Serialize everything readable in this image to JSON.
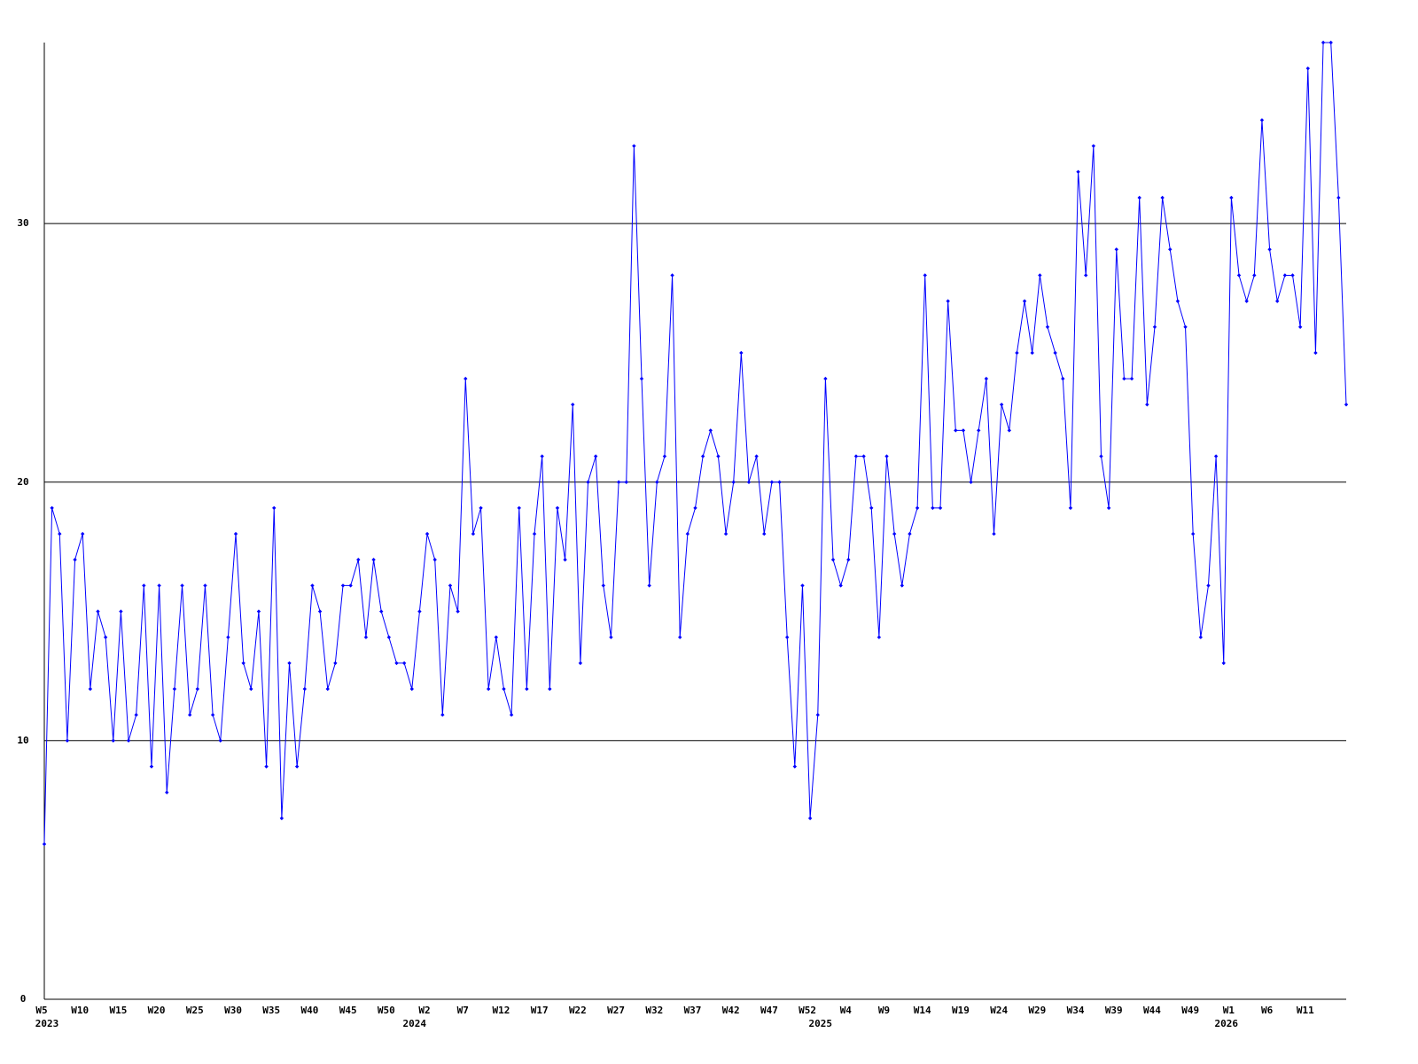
{
  "chart_data": {
    "type": "line",
    "color": "#0000ff",
    "grid": true,
    "ylim": [
      0,
      37
    ],
    "yticks": [
      0,
      10,
      20,
      30
    ],
    "categories": [
      "W5",
      null,
      null,
      null,
      null,
      "W10",
      null,
      null,
      null,
      null,
      "W15",
      null,
      null,
      null,
      null,
      "W20",
      null,
      null,
      null,
      null,
      "W25",
      null,
      null,
      null,
      null,
      "W30",
      null,
      null,
      null,
      null,
      "W35",
      null,
      null,
      null,
      null,
      "W40",
      null,
      null,
      null,
      null,
      "W45",
      null,
      null,
      null,
      null,
      "W50",
      null,
      null,
      null,
      null,
      "W2",
      null,
      null,
      null,
      null,
      "W7",
      null,
      null,
      null,
      null,
      "W12",
      null,
      null,
      null,
      null,
      "W17",
      null,
      null,
      null,
      null,
      "W22",
      null,
      null,
      null,
      null,
      "W27",
      null,
      null,
      null,
      null,
      "W32",
      null,
      null,
      null,
      null,
      "W37",
      null,
      null,
      null,
      null,
      "W42",
      null,
      null,
      null,
      null,
      "W47",
      null,
      null,
      null,
      null,
      "W52",
      null,
      null,
      null,
      null,
      "W4",
      null,
      null,
      null,
      null,
      "W9",
      null,
      null,
      null,
      null,
      "W14",
      null,
      null,
      null,
      null,
      "W19",
      null,
      null,
      null,
      null,
      "W24",
      null,
      null,
      null,
      null,
      "W29",
      null,
      null,
      null,
      null,
      "W34",
      null,
      null,
      null,
      null,
      "W39",
      null,
      null,
      null,
      null,
      "W44",
      null,
      null,
      null,
      null,
      "W49",
      null,
      null,
      null,
      null,
      "W1",
      null,
      null,
      null,
      null,
      "W6",
      null,
      null,
      null,
      null,
      "W11",
      null,
      null,
      null,
      null,
      null
    ],
    "years": [
      "2023",
      null,
      null,
      null,
      null,
      null,
      null,
      null,
      null,
      null,
      null,
      null,
      null,
      null,
      null,
      null,
      null,
      null,
      null,
      null,
      null,
      null,
      null,
      null,
      null,
      null,
      null,
      null,
      null,
      null,
      null,
      null,
      null,
      null,
      null,
      null,
      null,
      null,
      null,
      null,
      null,
      null,
      null,
      null,
      null,
      null,
      null,
      null,
      "2024",
      null,
      null,
      null,
      null,
      null,
      null,
      null,
      null,
      null,
      null,
      null,
      null,
      null,
      null,
      null,
      null,
      null,
      null,
      null,
      null,
      null,
      null,
      null,
      null,
      null,
      null,
      null,
      null,
      null,
      null,
      null,
      null,
      null,
      null,
      null,
      null,
      null,
      null,
      null,
      null,
      null,
      null,
      null,
      null,
      null,
      null,
      null,
      null,
      null,
      null,
      null,
      null,
      "2025",
      null,
      null,
      null,
      null,
      null,
      null,
      null,
      null,
      null,
      null,
      null,
      null,
      null,
      null,
      null,
      null,
      null,
      null,
      null,
      null,
      null,
      null,
      null,
      null,
      null,
      null,
      null,
      null,
      null,
      null,
      null,
      null,
      null,
      null,
      null,
      null,
      null,
      null,
      null,
      null,
      null,
      null,
      null,
      null,
      null,
      null,
      null,
      null,
      null,
      null,
      null,
      null,
      "2026",
      null,
      null,
      null,
      null,
      null,
      null,
      null,
      null,
      null,
      null,
      null,
      null,
      null,
      null,
      null,
      null
    ],
    "values": [
      6,
      19,
      18,
      10,
      17,
      18,
      12,
      15,
      14,
      10,
      15,
      10,
      11,
      16,
      9,
      16,
      8,
      12,
      16,
      11,
      12,
      16,
      11,
      10,
      14,
      18,
      13,
      12,
      15,
      9,
      19,
      7,
      13,
      9,
      12,
      16,
      15,
      12,
      13,
      16,
      16,
      17,
      14,
      17,
      15,
      14,
      13,
      13,
      12,
      15,
      18,
      17,
      11,
      16,
      15,
      24,
      18,
      19,
      12,
      14,
      12,
      11,
      19,
      12,
      18,
      21,
      12,
      19,
      17,
      23,
      13,
      20,
      21,
      16,
      14,
      20,
      20,
      33,
      24,
      16,
      20,
      21,
      28,
      14,
      18,
      19,
      21,
      22,
      21,
      18,
      20,
      25,
      20,
      21,
      18,
      20,
      20,
      14,
      9,
      16,
      7,
      11,
      24,
      17,
      16,
      17,
      21,
      21,
      19,
      14,
      21,
      18,
      16,
      18,
      19,
      28,
      19,
      19,
      27,
      22,
      22,
      20,
      22,
      24,
      18,
      23,
      22,
      25,
      27,
      25,
      28,
      26,
      25,
      24,
      19,
      32,
      28,
      33,
      21,
      19,
      29,
      24,
      24,
      31,
      23,
      26,
      31,
      29,
      27,
      26,
      18,
      14,
      16,
      21,
      13,
      31,
      28,
      27,
      28,
      34,
      29,
      27,
      28,
      28,
      26,
      36,
      25,
      37,
      37,
      31,
      23
    ]
  }
}
